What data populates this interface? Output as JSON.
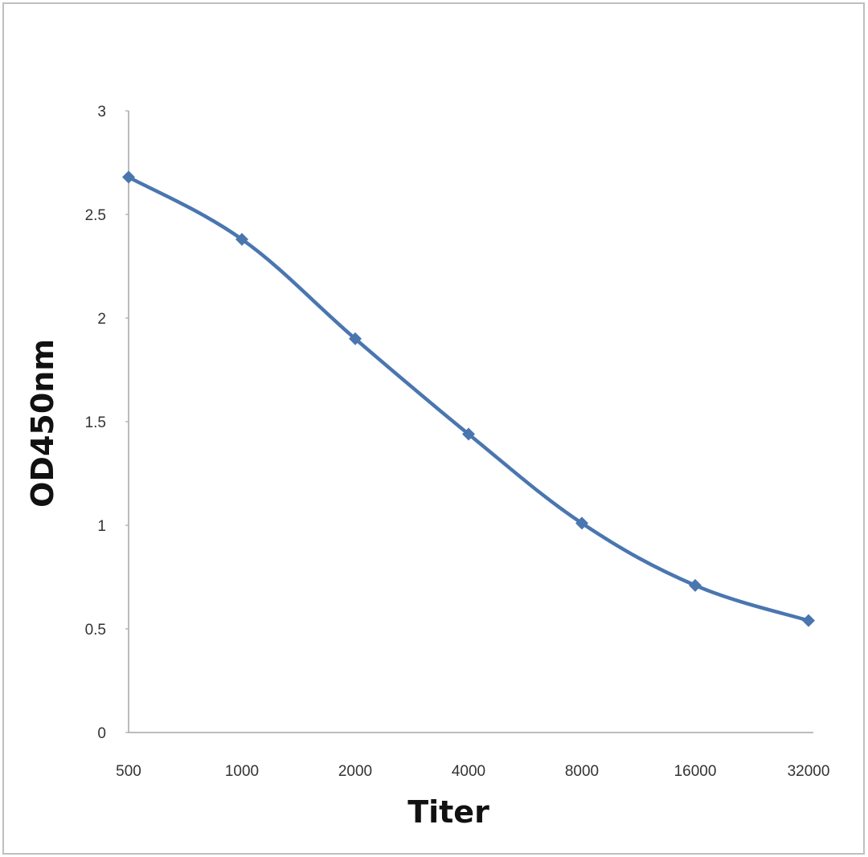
{
  "chart_data": {
    "type": "line",
    "categories": [
      "500",
      "1000",
      "2000",
      "4000",
      "8000",
      "16000",
      "32000"
    ],
    "series": [
      {
        "values": [
          2.68,
          2.38,
          1.9,
          1.44,
          1.01,
          0.71,
          0.54
        ]
      }
    ],
    "xlabel": "Titer",
    "ylabel": "OD450nm",
    "ylim": [
      0,
      3
    ],
    "yticks": [
      "0",
      "0.5",
      "1",
      "1.5",
      "2",
      "2.5",
      "3"
    ],
    "grid": false,
    "legend": "none",
    "line_style": "smoothed",
    "marker": "diamond",
    "colors": {
      "series": "#4a76b0",
      "axis": "#a6a6a6",
      "frame": "#bfbfbf"
    }
  }
}
